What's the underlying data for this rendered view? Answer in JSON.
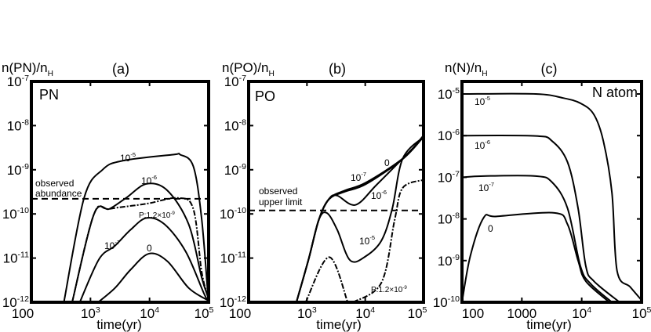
{
  "chart_data": [
    {
      "type": "line",
      "title": "(a)",
      "panel_label": "PN",
      "ylabel": {
        "main": "n(PN)/n",
        "sub": "H"
      },
      "xlabel": "time(yr)",
      "xscale": "log",
      "yscale": "log",
      "xlim": [
        100,
        100000
      ],
      "ylim": [
        1e-12,
        1e-07
      ],
      "xticks": [
        {
          "base": "100",
          "exp": ""
        },
        {
          "base": "10",
          "exp": "3"
        },
        {
          "base": "10",
          "exp": "4"
        },
        {
          "base": "10",
          "exp": "5"
        }
      ],
      "yticks": [
        {
          "base": "10",
          "exp": "-7"
        },
        {
          "base": "10",
          "exp": "-8"
        },
        {
          "base": "10",
          "exp": "-9"
        },
        {
          "base": "10",
          "exp": "-10"
        },
        {
          "base": "10",
          "exp": "-11"
        },
        {
          "base": "10",
          "exp": "-12"
        }
      ],
      "reference_line": {
        "value": 2.2e-10,
        "style": "dashed",
        "label": [
          "observed",
          "abundance"
        ]
      },
      "series": [
        {
          "name": "10^-5",
          "label": {
            "base": "10",
            "exp": "-5"
          },
          "style": "solid",
          "points": [
            [
              355,
              1e-12
            ],
            [
              780,
              2.3e-10
            ],
            [
              1600,
              1e-09
            ],
            [
              3500,
              1.6e-09
            ],
            [
              25000,
              2.2e-09
            ],
            [
              33000,
              2.2e-09
            ],
            [
              55000,
              1.2e-09
            ],
            [
              76000,
              8e-11
            ],
            [
              98000,
              1.3e-12
            ]
          ]
        },
        {
          "name": "10^-6",
          "label": {
            "base": "10",
            "exp": "-6"
          },
          "style": "solid",
          "points": [
            [
              490,
              1e-12
            ],
            [
              1150,
              1e-10
            ],
            [
              2100,
              1.3e-10
            ],
            [
              4000,
              2.3e-10
            ],
            [
              8900,
              4.8e-10
            ],
            [
              20000,
              3.4e-10
            ],
            [
              46000,
              5.8e-11
            ],
            [
              76000,
              3.7e-12
            ],
            [
              98000,
              1.3e-12
            ]
          ]
        },
        {
          "name": "P:1.2×10^-9",
          "label": {
            "base": "P:1.2×10",
            "exp": "-9"
          },
          "style": "dashdot",
          "points": [
            [
              490,
              1e-12
            ],
            [
              1150,
              1e-10
            ],
            [
              2100,
              1.3e-10
            ],
            [
              8900,
              1.7e-10
            ],
            [
              30000,
              2.3e-10
            ],
            [
              55000,
              1.3e-10
            ],
            [
              76000,
              5e-12
            ],
            [
              98000,
              1.3e-12
            ]
          ]
        },
        {
          "name": "10^-7",
          "label": {
            "base": "10",
            "exp": "-7"
          },
          "style": "solid",
          "points": [
            [
              660,
              1e-12
            ],
            [
              1400,
              9.5e-12
            ],
            [
              2600,
              1.9e-11
            ],
            [
              4800,
              4.4e-11
            ],
            [
              8900,
              8.1e-11
            ],
            [
              18000,
              5.8e-11
            ],
            [
              41000,
              1.4e-11
            ],
            [
              83000,
              1.6e-12
            ],
            [
              98000,
              1.1e-12
            ]
          ]
        },
        {
          "name": "0",
          "label": {
            "base": "0",
            "exp": ""
          },
          "style": "solid",
          "points": [
            [
              1350,
              1e-12
            ],
            [
              2600,
              2.1e-12
            ],
            [
              4800,
              5.5e-12
            ],
            [
              9800,
              1.26e-11
            ],
            [
              20000,
              8.5e-12
            ],
            [
              46000,
              2.1e-12
            ],
            [
              98000,
              1.1e-12
            ]
          ]
        }
      ]
    },
    {
      "type": "line",
      "title": "(b)",
      "panel_label": "PO",
      "ylabel": {
        "main": "n(PO)/n",
        "sub": "H"
      },
      "xlabel": "time(yr)",
      "xscale": "log",
      "yscale": "log",
      "xlim": [
        100,
        100000
      ],
      "ylim": [
        1e-12,
        1e-07
      ],
      "xticks": [
        {
          "base": "100",
          "exp": ""
        },
        {
          "base": "10",
          "exp": "3"
        },
        {
          "base": "10",
          "exp": "4"
        },
        {
          "base": "10",
          "exp": "5"
        }
      ],
      "yticks": [
        {
          "base": "10",
          "exp": "-7"
        },
        {
          "base": "10",
          "exp": "-8"
        },
        {
          "base": "10",
          "exp": "-9"
        },
        {
          "base": "10",
          "exp": "-10"
        },
        {
          "base": "10",
          "exp": "-11"
        },
        {
          "base": "10",
          "exp": "-12"
        }
      ],
      "reference_line": {
        "value": 1.2e-10,
        "style": "dashed",
        "label": [
          "observed",
          "upper limit"
        ]
      },
      "series": [
        {
          "name": "0",
          "label": {
            "base": "0",
            "exp": ""
          },
          "style": "solid",
          "points": [
            [
              660,
              1e-12
            ],
            [
              1070,
              9.5e-12
            ],
            [
              1600,
              7.4e-11
            ],
            [
              2400,
              2.2e-10
            ],
            [
              4500,
              3.4e-10
            ],
            [
              10200,
              5.1e-10
            ],
            [
              44000,
              1.8e-09
            ],
            [
              100000,
              6e-09
            ]
          ]
        },
        {
          "name": "10^-7",
          "label": {
            "base": "10",
            "exp": "-7"
          },
          "style": "solid",
          "points": [
            [
              660,
              1e-12
            ],
            [
              1070,
              9.5e-12
            ],
            [
              1600,
              7.4e-11
            ],
            [
              2400,
              2.15e-10
            ],
            [
              4500,
              3.2e-10
            ],
            [
              10200,
              4.7e-10
            ],
            [
              44000,
              1.75e-09
            ],
            [
              100000,
              5.6e-09
            ]
          ]
        },
        {
          "name": "10^-6",
          "label": {
            "base": "10",
            "exp": "-6"
          },
          "style": "solid",
          "points": [
            [
              660,
              1e-12
            ],
            [
              1070,
              9.5e-12
            ],
            [
              1600,
              7.4e-11
            ],
            [
              2400,
              2.2e-10
            ],
            [
              3300,
              2.6e-10
            ],
            [
              6800,
              1.6e-10
            ],
            [
              15500,
              4.5e-10
            ],
            [
              44000,
              1.8e-09
            ],
            [
              100000,
              5.5e-09
            ]
          ]
        },
        {
          "name": "10^-5",
          "label": {
            "base": "10",
            "exp": "-5"
          },
          "style": "solid",
          "points": [
            [
              660,
              1e-12
            ],
            [
              1070,
              9.5e-12
            ],
            [
              1600,
              7.4e-11
            ],
            [
              2200,
              1.05e-10
            ],
            [
              3300,
              4.4e-11
            ],
            [
              5500,
              8.9e-12
            ],
            [
              10200,
              1.1e-11
            ],
            [
              19000,
              2.5e-11
            ],
            [
              29000,
              1.3e-10
            ],
            [
              44000,
              1.8e-09
            ],
            [
              100000,
              5.5e-09
            ]
          ]
        },
        {
          "name": "P:1.2×10^-9",
          "label": {
            "base": "P:1.2×10",
            "exp": "-9"
          },
          "style": "dashdot",
          "segments": [
            [
              [
                950,
                1e-12
              ],
              [
                2400,
                1.05e-11
              ],
              [
                5000,
                1e-12
              ]
            ],
            [
              [
                6200,
                1e-12
              ],
              [
                19000,
                2.8e-12
              ],
              [
                32000,
                7.4e-11
              ],
              [
                44000,
                3.9e-10
              ],
              [
                100000,
                5.9e-10
              ]
            ]
          ]
        }
      ]
    },
    {
      "type": "line",
      "title": "(c)",
      "panel_label": "N atom",
      "ylabel": {
        "main": "n(N)/n",
        "sub": "H"
      },
      "xlabel": "time(yr)",
      "xscale": "log",
      "yscale": "log",
      "xlim": [
        100,
        100000
      ],
      "ylim": [
        1e-10,
        2e-05
      ],
      "xticks": [
        {
          "base": "100",
          "exp": ""
        },
        {
          "base": "1000",
          "exp": ""
        },
        {
          "base": "10",
          "exp": "4"
        },
        {
          "base": "10",
          "exp": "5"
        }
      ],
      "yticks": [
        {
          "base": "10",
          "exp": "-5"
        },
        {
          "base": "10",
          "exp": "-6"
        },
        {
          "base": "10",
          "exp": "-7"
        },
        {
          "base": "10",
          "exp": "-8"
        },
        {
          "base": "10",
          "exp": "-9"
        },
        {
          "base": "10",
          "exp": "-10"
        }
      ],
      "series": [
        {
          "name": "10^-5",
          "label": {
            "base": "10",
            "exp": "-5"
          },
          "style": "solid",
          "points": [
            [
              100,
              1e-05
            ],
            [
              1700,
              1e-05
            ],
            [
              4700,
              8.1e-06
            ],
            [
              9500,
              6e-06
            ],
            [
              16000,
              3.2e-06
            ],
            [
              23000,
              7.4e-07
            ],
            [
              32000,
              4.2e-08
            ],
            [
              39000,
              5.6e-10
            ],
            [
              65000,
              2.3e-10
            ],
            [
              107000,
              1e-10
            ]
          ]
        },
        {
          "name": "10^-6",
          "label": {
            "base": "10",
            "exp": "-6"
          },
          "style": "solid",
          "points": [
            [
              100,
              1e-06
            ],
            [
              1700,
              9.8e-07
            ],
            [
              3200,
              7.4e-07
            ],
            [
              5800,
              2.3e-07
            ],
            [
              8700,
              1.8e-08
            ],
            [
              11700,
              7.4e-10
            ],
            [
              16000,
              3.2e-10
            ],
            [
              43000,
              1e-10
            ]
          ]
        },
        {
          "name": "10^-7",
          "label": {
            "base": "10",
            "exp": "-7"
          },
          "style": "solid",
          "points": [
            [
              100,
              1e-07
            ],
            [
              230,
              1.07e-07
            ],
            [
              1700,
              1.07e-07
            ],
            [
              3200,
              7.6e-08
            ],
            [
              5800,
              1.8e-08
            ],
            [
              9500,
              7.4e-10
            ],
            [
              14000,
              2.8e-10
            ],
            [
              32000,
              1e-10
            ]
          ]
        },
        {
          "name": "0",
          "label": {
            "base": "0",
            "exp": ""
          },
          "style": "solid",
          "points": [
            [
              100,
              1e-10
            ],
            [
              138,
              1.3e-09
            ],
            [
              230,
              1.07e-08
            ],
            [
              380,
              1.15e-08
            ],
            [
              3500,
              1.4e-08
            ],
            [
              5800,
              7.4e-09
            ],
            [
              8700,
              1e-09
            ],
            [
              11700,
              3.2e-10
            ],
            [
              29000,
              1e-10
            ]
          ]
        }
      ]
    }
  ]
}
